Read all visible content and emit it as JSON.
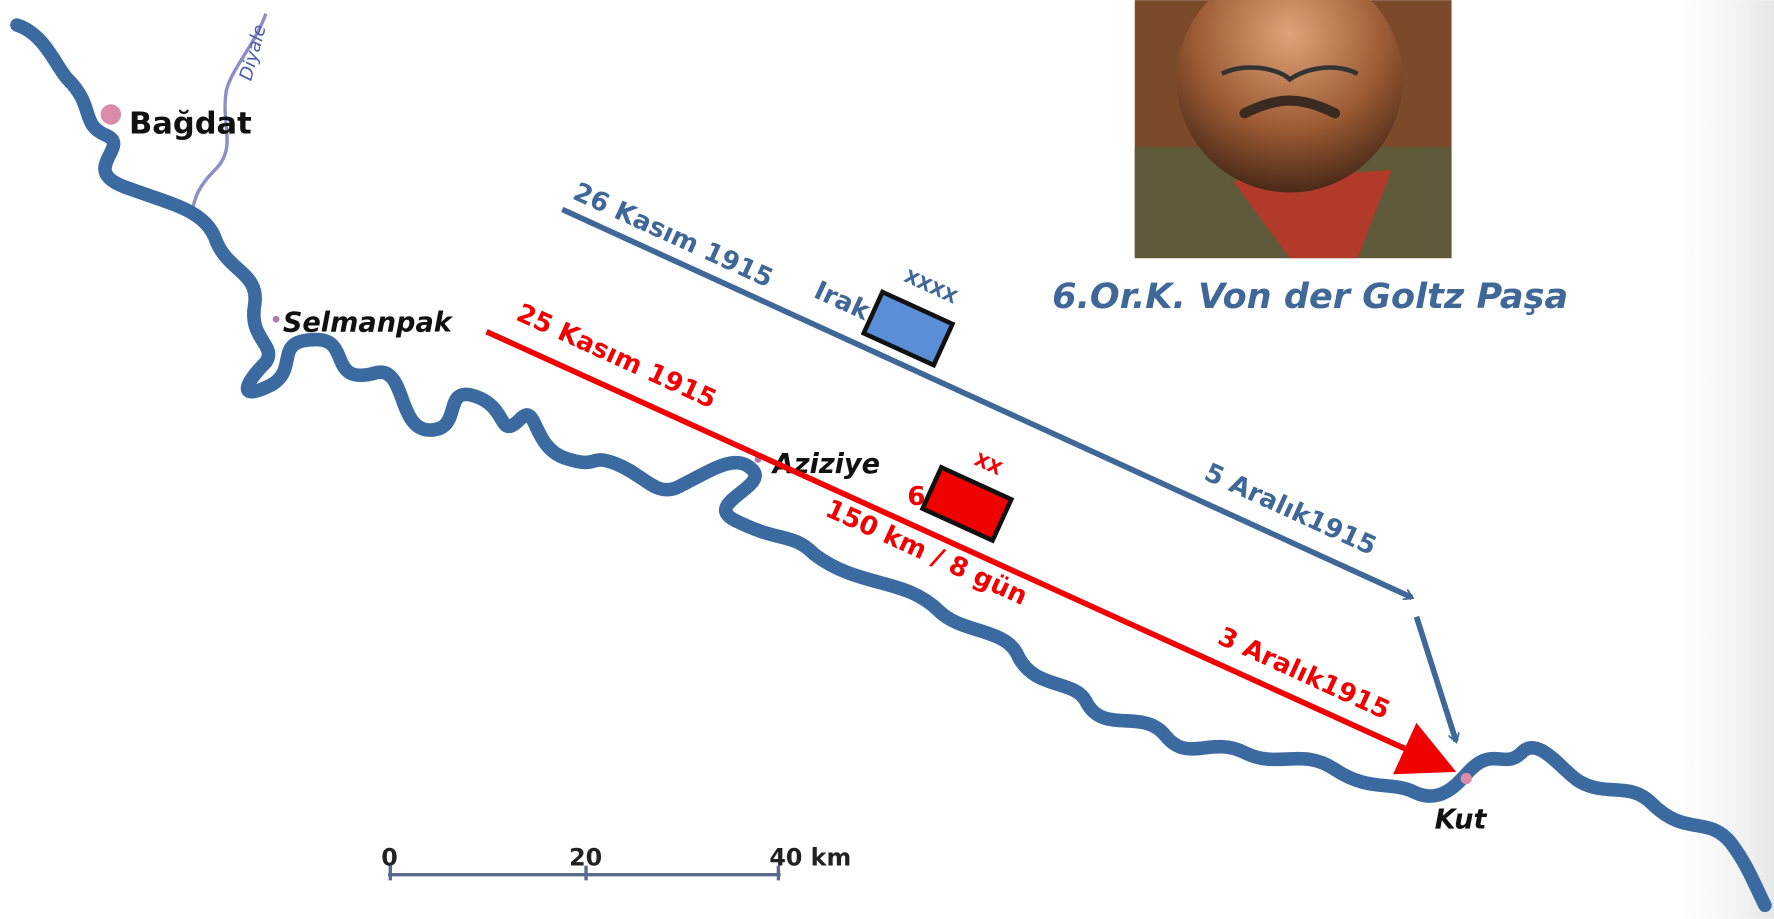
{
  "map": {
    "tributary": "Diyale",
    "places": [
      "Bağdat",
      "Selmanpak",
      "Aziziye",
      "Kut"
    ],
    "ottoman_route": {
      "start": "26 Kasım 1915",
      "unit": "Irak",
      "unit_size": "XXXX",
      "end": "5 Aralık1915"
    },
    "british_route": {
      "start": "25 Kasım 1915",
      "unit": "6",
      "unit_size": "XX",
      "distance": "150 km / 8 gün",
      "end": "3 Aralık1915"
    },
    "portrait_caption": "6.Or.K. Von der Goltz Paşa",
    "scale": [
      "0",
      "20",
      "40 km"
    ]
  }
}
